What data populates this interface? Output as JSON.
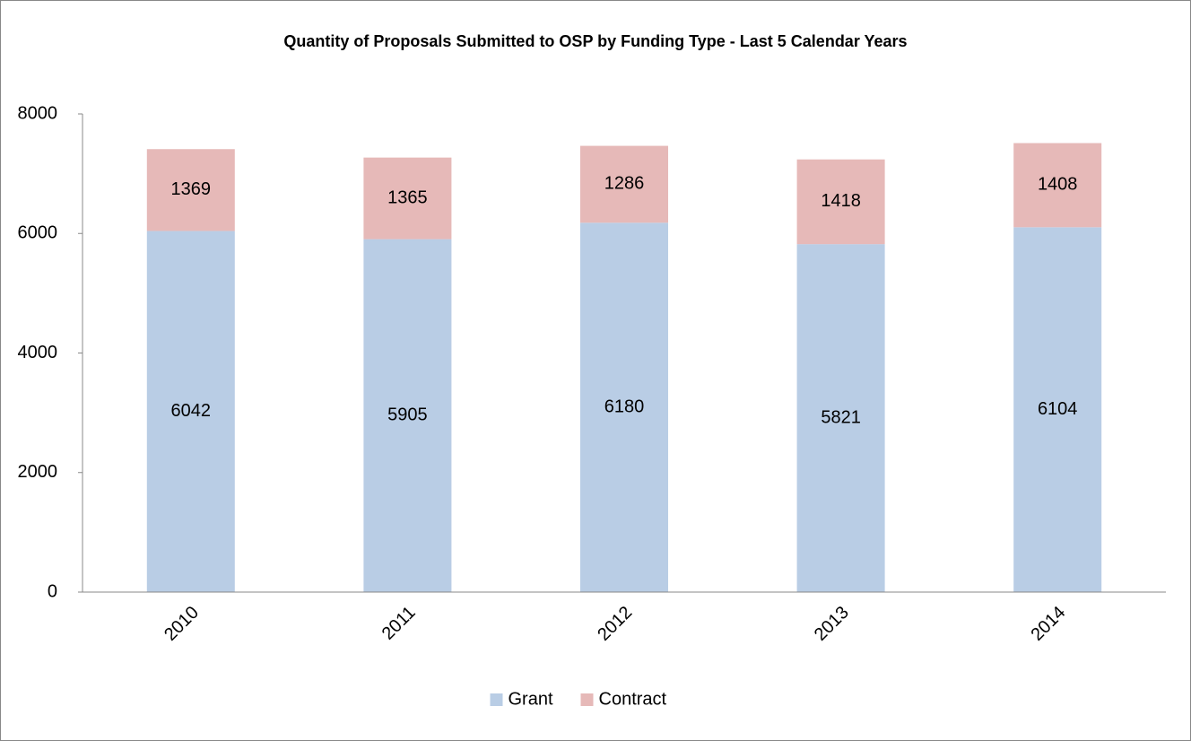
{
  "chart_data": {
    "type": "bar",
    "stacked": true,
    "title": "Quantity of Proposals Submitted to OSP by Funding Type - Last 5 Calendar Years",
    "categories": [
      "2010",
      "2011",
      "2012",
      "2013",
      "2014"
    ],
    "series": [
      {
        "name": "Grant",
        "color": "#b9cde5",
        "values": [
          6042,
          5905,
          6180,
          5821,
          6104
        ]
      },
      {
        "name": "Contract",
        "color": "#e6b9b8",
        "values": [
          1369,
          1365,
          1286,
          1418,
          1408
        ]
      }
    ],
    "ylim": [
      0,
      8000
    ],
    "yticks": [
      0,
      2000,
      4000,
      6000,
      8000
    ],
    "grid": false,
    "legend": "bottom"
  }
}
